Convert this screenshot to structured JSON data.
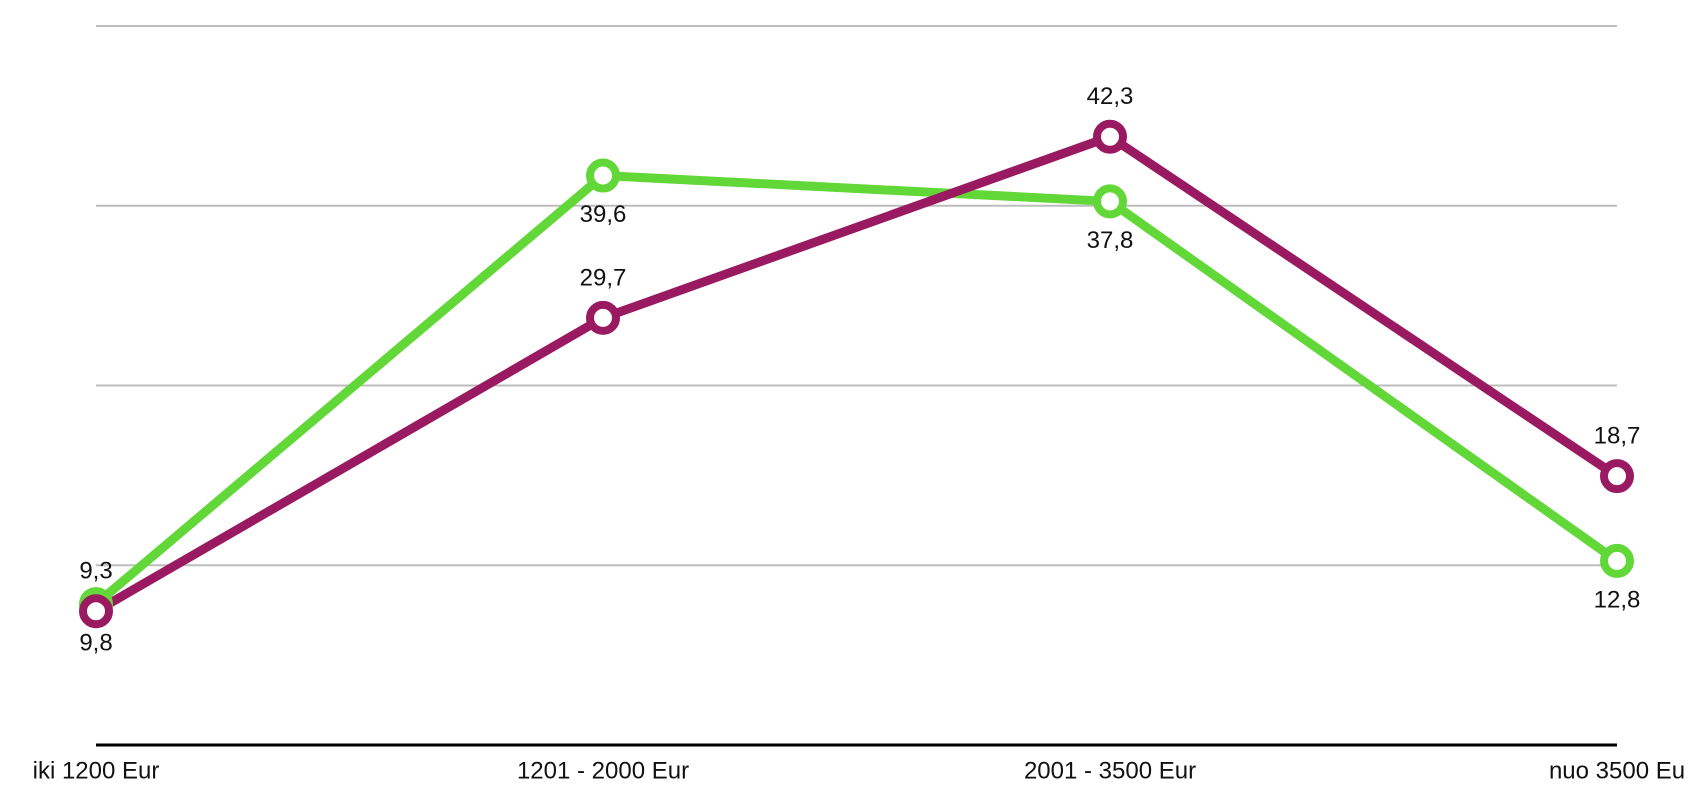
{
  "chart_data": {
    "type": "line",
    "categories": [
      "iki 1200 Eur",
      "1201 - 2000 Eur",
      "2001 - 3500 Eur",
      "nuo 3500 Eu"
    ],
    "series": [
      {
        "color": "#62d838",
        "values": [
          9.8,
          39.6,
          37.8,
          12.8
        ],
        "value_labels": [
          "9,8",
          "39,6",
          "37,8",
          "12,8"
        ],
        "label_position": "below"
      },
      {
        "color": "#9a1a62",
        "values": [
          9.3,
          29.7,
          42.3,
          18.7
        ],
        "value_labels": [
          "9,3",
          "29,7",
          "42,3",
          "18,7"
        ],
        "label_position": "above"
      }
    ],
    "ylim": [
      0,
      50
    ],
    "yticks": [
      0,
      12.5,
      25,
      37.5,
      50
    ],
    "grid": true
  }
}
